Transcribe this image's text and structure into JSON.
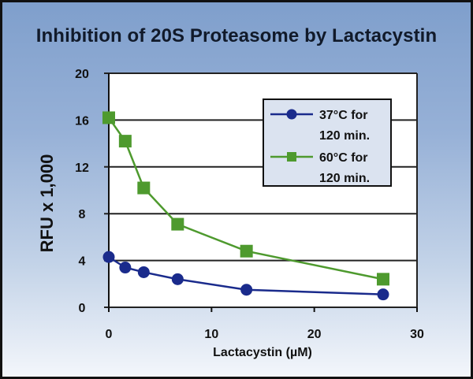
{
  "chart_data": {
    "type": "line",
    "title": "Inhibition of 20S Proteasome by Lactacystin",
    "xlabel": "Lactacystin (µM)",
    "ylabel": "RFU x 1,000",
    "xlim": [
      0,
      30
    ],
    "ylim": [
      0,
      20
    ],
    "xticks": [
      0,
      10,
      20,
      30
    ],
    "yticks": [
      0,
      4,
      8,
      12,
      16,
      20
    ],
    "grid": "horizontal",
    "legend_position": "upper right (inside)",
    "series": [
      {
        "name": "37°C for 120 min.",
        "color": "#1a2b8c",
        "marker": "circle",
        "x": [
          0,
          1.6,
          3.4,
          6.7,
          13.4,
          26.7
        ],
        "y": [
          4.3,
          3.4,
          3.0,
          2.4,
          1.5,
          1.1
        ]
      },
      {
        "name": "60°C for 120 min.",
        "color": "#4e9a2e",
        "marker": "square",
        "x": [
          0,
          1.6,
          3.4,
          6.7,
          13.4,
          26.7
        ],
        "y": [
          16.2,
          14.2,
          10.2,
          7.1,
          4.8,
          2.4
        ]
      }
    ]
  },
  "legend": {
    "items": [
      {
        "line1": "37°C for",
        "line2": "120 min."
      },
      {
        "line1": "60°C for",
        "line2": "120 min."
      }
    ]
  }
}
